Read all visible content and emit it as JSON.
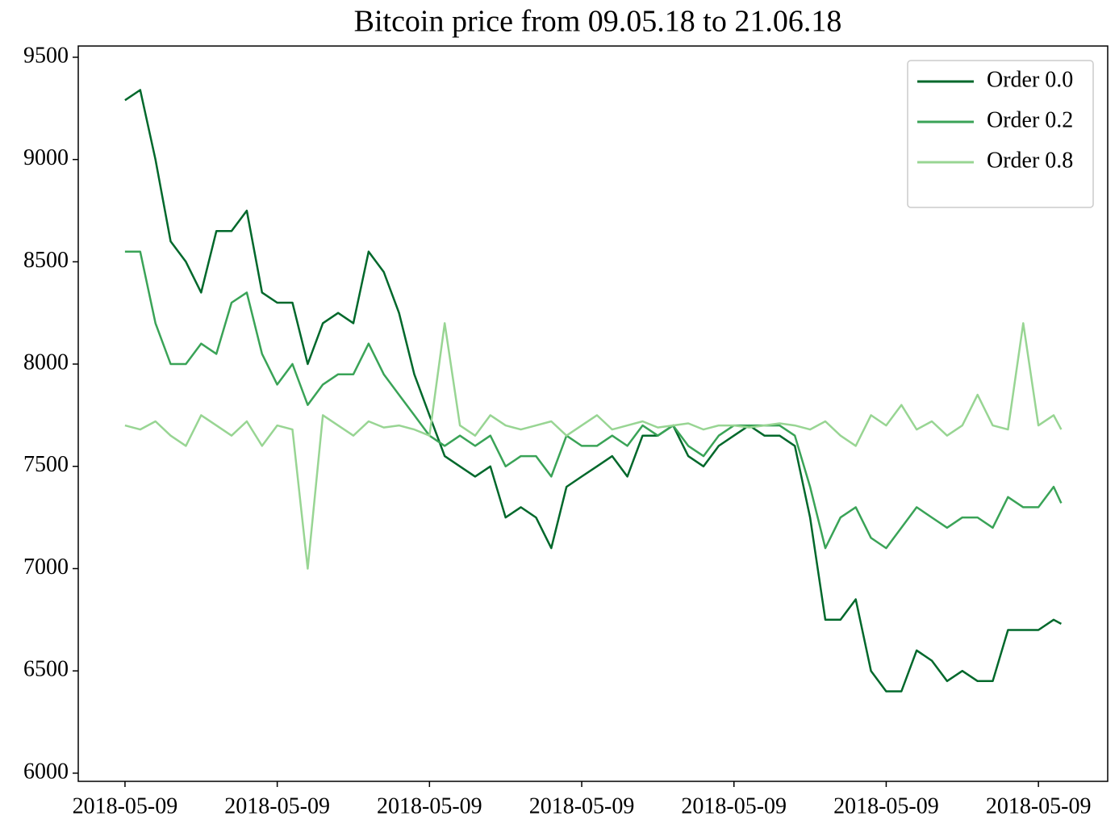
{
  "chart_data": {
    "type": "line",
    "title": "Bitcoin price from 09.05.18 to 21.06.18",
    "x": [
      0,
      100,
      200,
      300,
      400,
      500,
      600,
      700,
      800,
      900,
      1000,
      1100,
      1200,
      1300,
      1400,
      1500,
      1600,
      1700,
      1800,
      1900,
      2000,
      2100,
      2200,
      2300,
      2400,
      2500,
      2600,
      2700,
      2800,
      2900,
      3000,
      3100,
      3200,
      3300,
      3400,
      3500,
      3600,
      3700,
      3800,
      3900,
      4000,
      4100,
      4200,
      4300,
      4400,
      4500,
      4600,
      4700,
      4800,
      4900,
      5000,
      5100,
      5200,
      5300,
      5400,
      5500,
      5600,
      5700,
      5800,
      5900,
      6000,
      6100,
      6150
    ],
    "series": [
      {
        "name": "Order 0.0",
        "color": "#00682b",
        "values": [
          9290,
          9340,
          9000,
          8600,
          8500,
          8350,
          8650,
          8650,
          8750,
          8350,
          8300,
          8300,
          8000,
          8200,
          8250,
          8200,
          8550,
          8450,
          8250,
          7950,
          7750,
          7550,
          7500,
          7450,
          7500,
          7250,
          7300,
          7250,
          7100,
          7400,
          7450,
          7500,
          7550,
          7450,
          7650,
          7650,
          7700,
          7550,
          7500,
          7600,
          7650,
          7700,
          7650,
          7650,
          7600,
          7250,
          6750,
          6750,
          6850,
          6500,
          6400,
          6400,
          6600,
          6550,
          6450,
          6500,
          6450,
          6450,
          6700,
          6700,
          6700,
          6750,
          6730
        ]
      },
      {
        "name": "Order 0.2",
        "color": "#3aa357",
        "values": [
          8550,
          8550,
          8200,
          8000,
          8000,
          8100,
          8050,
          8300,
          8350,
          8050,
          7900,
          8000,
          7800,
          7900,
          7950,
          7950,
          8100,
          7950,
          7850,
          7750,
          7650,
          7600,
          7650,
          7600,
          7650,
          7500,
          7550,
          7550,
          7450,
          7650,
          7600,
          7600,
          7650,
          7600,
          7700,
          7650,
          7700,
          7600,
          7550,
          7650,
          7700,
          7700,
          7700,
          7700,
          7650,
          7400,
          7100,
          7250,
          7300,
          7150,
          7100,
          7200,
          7300,
          7250,
          7200,
          7250,
          7250,
          7200,
          7350,
          7300,
          7300,
          7400,
          7320
        ]
      },
      {
        "name": "Order 0.8",
        "color": "#98d593",
        "values": [
          7700,
          7680,
          7720,
          7650,
          7600,
          7750,
          7700,
          7650,
          7720,
          7600,
          7700,
          7680,
          7000,
          7750,
          7700,
          7650,
          7720,
          7690,
          7700,
          7680,
          7650,
          8200,
          7700,
          7650,
          7750,
          7700,
          7680,
          7700,
          7720,
          7650,
          7700,
          7750,
          7680,
          7700,
          7720,
          7690,
          7700,
          7710,
          7680,
          7700,
          7700,
          7690,
          7700,
          7710,
          7700,
          7680,
          7720,
          7650,
          7600,
          7750,
          7700,
          7800,
          7680,
          7720,
          7650,
          7700,
          7850,
          7700,
          7680,
          8200,
          7700,
          7750,
          7680
        ]
      }
    ],
    "xlim": [
      -307,
      6455
    ],
    "ylim": [
      5960,
      9555
    ],
    "xticks": [
      {
        "value": 0,
        "label": "2018-05-09"
      },
      {
        "value": 1000,
        "label": "2018-05-09"
      },
      {
        "value": 2000,
        "label": "2018-05-09"
      },
      {
        "value": 3000,
        "label": "2018-05-09"
      },
      {
        "value": 4000,
        "label": "2018-05-09"
      },
      {
        "value": 5000,
        "label": "2018-05-09"
      },
      {
        "value": 6000,
        "label": "2018-05-09"
      }
    ],
    "yticks": [
      6000,
      6500,
      7000,
      7500,
      8000,
      8500,
      9000,
      9500
    ],
    "legend": "upper right"
  }
}
